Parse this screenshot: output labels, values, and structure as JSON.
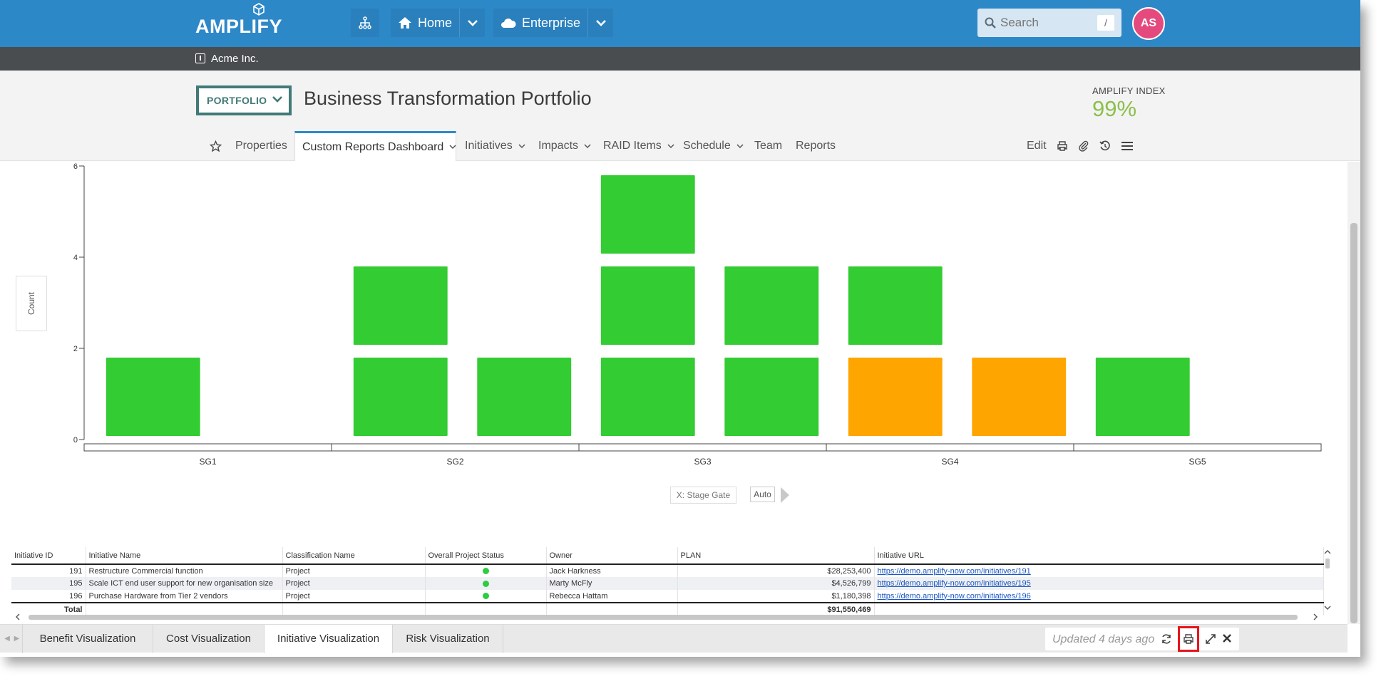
{
  "navbar": {
    "logo_text": "AMPLIFY",
    "home_label": "Home",
    "enterprise_label": "Enterprise",
    "search_placeholder": "Search",
    "search_shortcut": "/",
    "avatar_initials": "AS",
    "brand_color": "#2d88c8",
    "avatar_color": "#e44a7d"
  },
  "org": {
    "name": "Acme Inc."
  },
  "header": {
    "portfolio_label": "PORTFOLIO",
    "title": "Business Transformation Portfolio",
    "amplify_index_label": "AMPLIFY INDEX",
    "amplify_index_value": "99%"
  },
  "tabs": [
    {
      "label": "Properties"
    },
    {
      "label": "Custom Reports Dashboard",
      "active": true
    },
    {
      "label": "Initiatives"
    },
    {
      "label": "Impacts"
    },
    {
      "label": "RAID Items"
    },
    {
      "label": "Schedule"
    },
    {
      "label": "Team"
    },
    {
      "label": "Reports"
    }
  ],
  "toolbar": {
    "edit_label": "Edit"
  },
  "chart_data": {
    "type": "bar",
    "categories": [
      "SG1",
      "SG2",
      "SG3",
      "SG4",
      "SG5"
    ],
    "ylim": [
      0,
      6
    ],
    "yticks": [
      0,
      2,
      4,
      6
    ],
    "ylabel": "Count",
    "x_field_label": "X: Stage Gate",
    "auto_label": "Auto",
    "colors": {
      "green": "#33cc33",
      "orange": "#ffa500"
    },
    "stacks": [
      {
        "category": "SG1",
        "values": [
          2
        ],
        "colors": [
          "green"
        ]
      },
      {
        "category": "SG2",
        "values": [
          4,
          2
        ],
        "colors": [
          "green",
          "green"
        ]
      },
      {
        "category": "SG3",
        "values": [
          6,
          4
        ],
        "colors": [
          "green",
          "green"
        ]
      },
      {
        "category": "SG4",
        "values": [
          4,
          2
        ],
        "colors": [
          "green",
          "orange"
        ],
        "lower_colors": [
          "orange",
          "orange"
        ]
      },
      {
        "category": "SG5",
        "values": [
          2
        ],
        "colors": [
          "green"
        ]
      }
    ]
  },
  "table": {
    "columns": [
      "Initiative ID",
      "Initiative Name",
      "Classification Name",
      "Overall Project Status",
      "Owner",
      "PLAN",
      "Initiative URL"
    ],
    "rows": [
      {
        "id": "191",
        "name": "Restructure Commercial function",
        "classification": "Project",
        "status_color": "#2ecc40",
        "owner": "Jack Harkness",
        "plan": "$28,253,400",
        "url": "https://demo.amplify-now.com/initiatives/191"
      },
      {
        "id": "195",
        "name": "Scale ICT end user support for new organisation size",
        "classification": "Project",
        "status_color": "#2ecc40",
        "owner": "Marty McFly",
        "plan": "$4,526,799",
        "url": "https://demo.amplify-now.com/initiatives/195"
      },
      {
        "id": "196",
        "name": "Purchase Hardware from Tier 2 vendors",
        "classification": "Project",
        "status_color": "#2ecc40",
        "owner": "Rebecca Hattam",
        "plan": "$1,180,398",
        "url": "https://demo.amplify-now.com/initiatives/196"
      }
    ],
    "total_label": "Total",
    "total_plan": "$91,550,469"
  },
  "sheets": {
    "tabs": [
      "Benefit Visualization",
      "Cost Visualization",
      "Initiative Visualization",
      "Risk Visualization"
    ],
    "active_index": 2,
    "updated_text": "Updated 4 days ago"
  }
}
